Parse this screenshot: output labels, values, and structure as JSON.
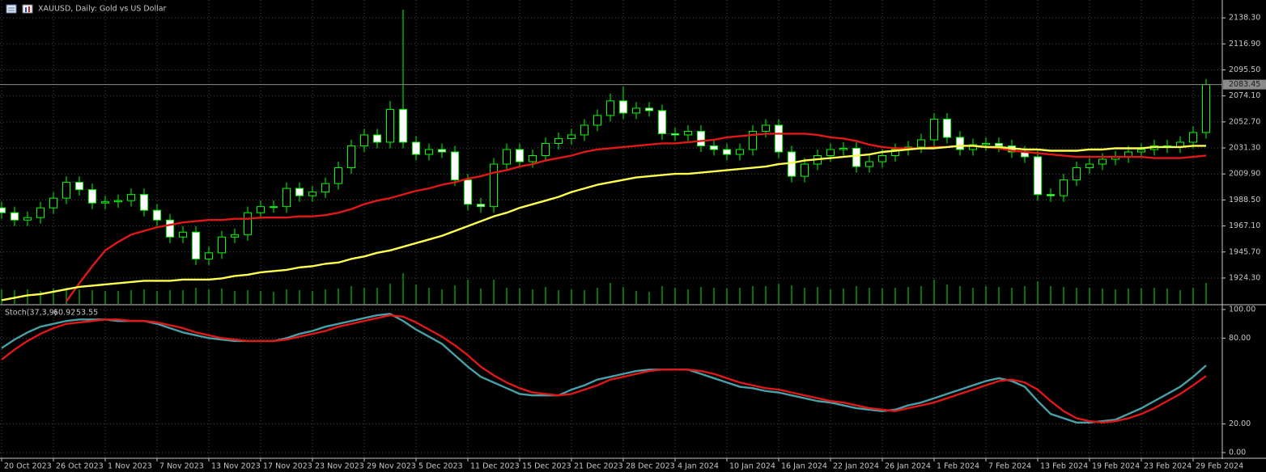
{
  "chart_data": [
    {
      "type": "candlestick",
      "title": "XAUUSD, Daily:  Gold vs US Dollar",
      "categories": [
        "20 Oct 2023",
        null,
        null,
        null,
        "26 Oct 2023",
        null,
        null,
        null,
        "1 Nov 2023",
        null,
        null,
        null,
        "7 Nov 2023",
        null,
        null,
        null,
        "13 Nov 2023",
        null,
        null,
        null,
        "17 Nov 2023",
        null,
        null,
        null,
        "23 Nov 2023",
        null,
        null,
        null,
        "29 Nov 2023",
        null,
        null,
        null,
        "5 Dec 2023",
        null,
        null,
        null,
        "11 Dec 2023",
        null,
        null,
        null,
        "15 Dec 2023",
        null,
        null,
        null,
        "21 Dec 2023",
        null,
        null,
        null,
        "28 Dec 2023",
        null,
        null,
        null,
        "4 Jan 2024",
        null,
        null,
        null,
        "10 Jan 2024",
        null,
        null,
        null,
        "16 Jan 2024",
        null,
        null,
        null,
        "22 Jan 2024",
        null,
        null,
        null,
        "26 Jan 2024",
        null,
        null,
        null,
        "1 Feb 2024",
        null,
        null,
        null,
        "7 Feb 2024",
        null,
        null,
        null,
        "13 Feb 2024",
        null,
        null,
        null,
        "19 Feb 2024",
        null,
        null,
        null,
        "23 Feb 2024",
        null,
        null,
        null,
        "29 Feb 2024",
        null
      ],
      "candles": [
        [
          1982,
          1987,
          1973,
          1978
        ],
        [
          1978,
          1983,
          1967,
          1972
        ],
        [
          1972,
          1979,
          1967,
          1974
        ],
        [
          1974,
          1987,
          1969,
          1982
        ],
        [
          1982,
          1995,
          1977,
          1990
        ],
        [
          1990,
          2008,
          1985,
          2003
        ],
        [
          2003,
          2008,
          1992,
          1997
        ],
        [
          1997,
          2002,
          1981,
          1986
        ],
        [
          1986,
          1992,
          1981,
          1987
        ],
        [
          1987,
          1993,
          1982,
          1988
        ],
        [
          1988,
          1998,
          1983,
          1993
        ],
        [
          1993,
          1998,
          1975,
          1980
        ],
        [
          1980,
          1985,
          1967,
          1972
        ],
        [
          1972,
          1977,
          1953,
          1958
        ],
        [
          1958,
          1967,
          1953,
          1962
        ],
        [
          1962,
          1967,
          1935,
          1940
        ],
        [
          1940,
          1950,
          1935,
          1945
        ],
        [
          1945,
          1963,
          1940,
          1958
        ],
        [
          1958,
          1965,
          1953,
          1960
        ],
        [
          1960,
          1983,
          1955,
          1978
        ],
        [
          1978,
          1988,
          1973,
          1983
        ],
        [
          1983,
          1988,
          1978,
          1983
        ],
        [
          1983,
          2003,
          1978,
          1998
        ],
        [
          1998,
          2003,
          1987,
          1992
        ],
        [
          1992,
          2000,
          1987,
          1995
        ],
        [
          1995,
          2007,
          1990,
          2002
        ],
        [
          2002,
          2020,
          1997,
          2015
        ],
        [
          2015,
          2038,
          2010,
          2033
        ],
        [
          2033,
          2047,
          2028,
          2042
        ],
        [
          2042,
          2047,
          2031,
          2036
        ],
        [
          2036,
          2070,
          2031,
          2063
        ],
        [
          2063,
          2145,
          2031,
          2036
        ],
        [
          2036,
          2041,
          2021,
          2026
        ],
        [
          2026,
          2035,
          2021,
          2030
        ],
        [
          2030,
          2035,
          2023,
          2028
        ],
        [
          2028,
          2033,
          2000,
          2005
        ],
        [
          2005,
          2010,
          1980,
          1985
        ],
        [
          1985,
          1990,
          1978,
          1983
        ],
        [
          1983,
          2023,
          1978,
          2018
        ],
        [
          2018,
          2035,
          2013,
          2030
        ],
        [
          2030,
          2035,
          2015,
          2020
        ],
        [
          2020,
          2030,
          2015,
          2025
        ],
        [
          2025,
          2040,
          2020,
          2035
        ],
        [
          2035,
          2044,
          2030,
          2039
        ],
        [
          2039,
          2047,
          2034,
          2042
        ],
        [
          2042,
          2055,
          2037,
          2050
        ],
        [
          2050,
          2063,
          2045,
          2058
        ],
        [
          2058,
          2076,
          2053,
          2070
        ],
        [
          2070,
          2082,
          2055,
          2060
        ],
        [
          2060,
          2069,
          2055,
          2064
        ],
        [
          2064,
          2069,
          2057,
          2062
        ],
        [
          2062,
          2067,
          2038,
          2043
        ],
        [
          2043,
          2048,
          2037,
          2042
        ],
        [
          2042,
          2050,
          2037,
          2045
        ],
        [
          2045,
          2050,
          2028,
          2033
        ],
        [
          2033,
          2038,
          2025,
          2030
        ],
        [
          2030,
          2035,
          2021,
          2026
        ],
        [
          2026,
          2035,
          2021,
          2030
        ],
        [
          2030,
          2050,
          2025,
          2045
        ],
        [
          2045,
          2055,
          2040,
          2050
        ],
        [
          2050,
          2055,
          2023,
          2028
        ],
        [
          2028,
          2033,
          2003,
          2008
        ],
        [
          2008,
          2023,
          2003,
          2018
        ],
        [
          2018,
          2030,
          2013,
          2025
        ],
        [
          2025,
          2035,
          2020,
          2030
        ],
        [
          2030,
          2036,
          2025,
          2031
        ],
        [
          2031,
          2036,
          2011,
          2016
        ],
        [
          2016,
          2025,
          2011,
          2020
        ],
        [
          2020,
          2030,
          2015,
          2025
        ],
        [
          2025,
          2035,
          2020,
          2030
        ],
        [
          2030,
          2037,
          2025,
          2032
        ],
        [
          2032,
          2043,
          2027,
          2038
        ],
        [
          2038,
          2060,
          2033,
          2055
        ],
        [
          2055,
          2060,
          2035,
          2040
        ],
        [
          2040,
          2045,
          2025,
          2030
        ],
        [
          2030,
          2039,
          2025,
          2034
        ],
        [
          2034,
          2040,
          2029,
          2035
        ],
        [
          2035,
          2040,
          2028,
          2033
        ],
        [
          2033,
          2038,
          2023,
          2028
        ],
        [
          2028,
          2033,
          2019,
          2024
        ],
        [
          2024,
          2029,
          1988,
          1993
        ],
        [
          1993,
          1998,
          1987,
          1992
        ],
        [
          1992,
          2010,
          1987,
          2005
        ],
        [
          2005,
          2020,
          2000,
          2015
        ],
        [
          2015,
          2023,
          2010,
          2018
        ],
        [
          2018,
          2027,
          2013,
          2022
        ],
        [
          2022,
          2029,
          2017,
          2024
        ],
        [
          2024,
          2033,
          2019,
          2028
        ],
        [
          2028,
          2035,
          2023,
          2030
        ],
        [
          2030,
          2038,
          2025,
          2033
        ],
        [
          2033,
          2038,
          2027,
          2032
        ],
        [
          2032,
          2041,
          2027,
          2036
        ],
        [
          2036,
          2049,
          2031,
          2044
        ],
        [
          2044,
          2088,
          2039,
          2083.45
        ]
      ],
      "volume": [
        18,
        17,
        18,
        16,
        19,
        20,
        18,
        17,
        16,
        16,
        17,
        18,
        16,
        17,
        17,
        20,
        18,
        19,
        16,
        17,
        16,
        15,
        18,
        17,
        16,
        18,
        19,
        22,
        20,
        20,
        25,
        38,
        24,
        20,
        18,
        23,
        30,
        19,
        30,
        20,
        19,
        18,
        21,
        17,
        18,
        17,
        20,
        26,
        21,
        16,
        15,
        22,
        20,
        18,
        21,
        20,
        19,
        20,
        22,
        22,
        25,
        23,
        20,
        21,
        18,
        19,
        22,
        20,
        19,
        20,
        21,
        22,
        30,
        24,
        22,
        20,
        22,
        21,
        20,
        22,
        28,
        22,
        21,
        20,
        20,
        19,
        18,
        19,
        19,
        20,
        19,
        17,
        20,
        26
      ],
      "series": [
        {
          "color": "#e01818",
          "values": [
            null,
            null,
            null,
            null,
            null,
            1905,
            1920,
            1934,
            1947,
            1954,
            1960,
            1963,
            1966,
            1968,
            1970,
            1971,
            1972,
            1972,
            1973,
            1973,
            1974,
            1974,
            1974,
            1975,
            1975,
            1976,
            1978,
            1981,
            1985,
            1988,
            1990,
            1993,
            1996,
            1998,
            2001,
            2003,
            2006,
            2008,
            2011,
            2013,
            2016,
            2018,
            2021,
            2023,
            2025,
            2028,
            2030,
            2031,
            2032,
            2033,
            2034,
            2035,
            2035,
            2036,
            2037,
            2038,
            2040,
            2041,
            2042,
            2043,
            2043,
            2043,
            2043,
            2042,
            2040,
            2039,
            2037,
            2034,
            2032,
            2031,
            2031,
            2031,
            2032,
            2032,
            2033,
            2033,
            2032,
            2031,
            2029,
            2028,
            2027,
            2026,
            2025,
            2024,
            2024,
            2024,
            2024,
            2024,
            2024,
            2023,
            2023,
            2023,
            2024,
            2025
          ]
        },
        {
          "color": "#ffff50",
          "values": [
            1906,
            1908,
            1910,
            1911,
            1913,
            1915,
            1917,
            1918,
            1919,
            1920,
            1921,
            1922,
            1922,
            1922,
            1923,
            1923,
            1923,
            1924,
            1926,
            1927,
            1929,
            1930,
            1931,
            1933,
            1934,
            1936,
            1937,
            1940,
            1942,
            1945,
            1947,
            1950,
            1953,
            1956,
            1959,
            1963,
            1967,
            1971,
            1975,
            1978,
            1982,
            1985,
            1988,
            1991,
            1995,
            1998,
            2001,
            2003,
            2005,
            2007,
            2008,
            2009,
            2010,
            2010,
            2011,
            2012,
            2013,
            2014,
            2015,
            2016,
            2018,
            2019,
            2021,
            2022,
            2023,
            2024,
            2025,
            2026,
            2028,
            2029,
            2030,
            2031,
            2031,
            2032,
            2033,
            2033,
            2032,
            2032,
            2031,
            2030,
            2030,
            2029,
            2029,
            2029,
            2030,
            2030,
            2031,
            2031,
            2031,
            2032,
            2032,
            2032,
            2033,
            2033
          ]
        }
      ],
      "candle_color": "#00ff00",
      "bull_fill": "#000000",
      "bear_fill": "#ffffff",
      "volume_color": "#00c000",
      "ylim": [
        1903,
        2153
      ],
      "yticks": [
        {
          "value": 2138.3,
          "label": "2138.30"
        },
        {
          "value": 2116.9,
          "label": "2116.90"
        },
        {
          "value": 2095.5,
          "label": "2095.50"
        },
        {
          "value": 2074.1,
          "label": "2074.10"
        },
        {
          "value": 2052.7,
          "label": "2052.70"
        },
        {
          "value": 2031.3,
          "label": "2031.30"
        },
        {
          "value": 2009.9,
          "label": "2009.90"
        },
        {
          "value": 1988.5,
          "label": "1988.50"
        },
        {
          "value": 1967.1,
          "label": "1967.10"
        },
        {
          "value": 1945.7,
          "label": "1945.70"
        },
        {
          "value": 1924.3,
          "label": "1924.30"
        }
      ],
      "grid": true
    },
    {
      "type": "line",
      "title": "Stoch(37,3,9)",
      "series": [
        {
          "color": "#4aa0a8",
          "values": [
            73,
            79,
            84,
            88,
            90,
            92,
            93,
            93,
            93,
            92,
            92,
            92,
            90,
            87,
            84,
            82,
            80,
            79,
            78,
            78,
            78,
            78,
            80,
            83,
            85,
            88,
            90,
            92,
            94,
            96,
            97,
            92,
            86,
            81,
            76,
            68,
            60,
            53,
            49,
            45,
            41,
            40,
            40,
            40,
            44,
            47,
            51,
            53,
            55,
            57,
            58,
            58,
            58,
            58,
            55,
            52,
            49,
            46,
            45,
            43,
            42,
            40,
            38,
            36,
            35,
            33,
            31,
            30,
            29,
            30,
            33,
            35,
            38,
            41,
            44,
            47,
            50,
            52,
            50,
            46,
            36,
            27,
            24,
            21,
            21,
            22,
            23,
            27,
            31,
            36,
            41,
            46,
            53,
            60.92
          ]
        },
        {
          "color": "#e01818",
          "values": [
            65,
            72,
            78,
            83,
            87,
            90,
            91,
            92,
            93,
            93,
            92,
            92,
            91,
            89,
            87,
            84,
            82,
            80,
            79,
            78,
            78,
            78,
            79,
            81,
            83,
            85,
            88,
            90,
            92,
            94,
            96,
            95,
            91,
            86,
            81,
            75,
            68,
            60,
            54,
            49,
            45,
            42,
            41,
            40,
            41,
            44,
            47,
            51,
            53,
            55,
            57,
            58,
            58,
            58,
            57,
            55,
            52,
            49,
            47,
            45,
            44,
            42,
            40,
            38,
            36,
            35,
            33,
            31,
            30,
            29,
            31,
            33,
            35,
            38,
            41,
            44,
            47,
            50,
            51,
            49,
            44,
            36,
            29,
            24,
            22,
            21,
            22,
            24,
            27,
            31,
            36,
            41,
            47,
            53.55
          ]
        }
      ],
      "ylim": [
        -3.4,
        102.8
      ],
      "yticks": [
        {
          "value": 100,
          "label": "100.00"
        },
        {
          "value": 80,
          "label": "80.00"
        },
        {
          "value": 20,
          "label": "20.00"
        },
        {
          "value": 0,
          "label": "0.00"
        }
      ],
      "grid": true
    }
  ]
}
